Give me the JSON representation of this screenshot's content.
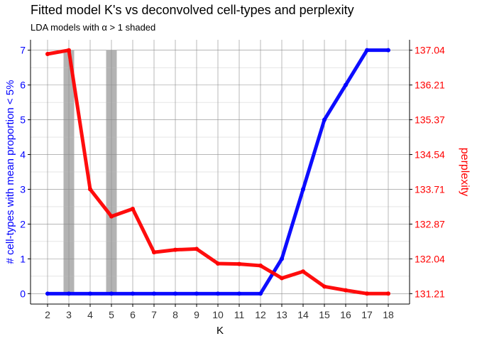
{
  "chart_data": {
    "type": "line",
    "title": "Fitted model K's vs deconvolved cell-types and perplexity",
    "subtitle": "LDA models with α > 1 shaded",
    "xlabel": "K",
    "ylabel_left": "# cell-types with mean proportion < 5%",
    "ylabel_right": "perplexity",
    "x": [
      2,
      3,
      4,
      5,
      6,
      7,
      8,
      9,
      10,
      11,
      12,
      13,
      14,
      15,
      16,
      17,
      18
    ],
    "xlim": [
      1.2,
      19.0
    ],
    "ylim_left": [
      -0.3,
      7.3
    ],
    "yticks_left": [
      0,
      1,
      2,
      3,
      4,
      5,
      6,
      7
    ],
    "ylim_right": [
      130.96,
      137.29
    ],
    "yticks_right": [
      "131.21",
      "132.04",
      "132.87",
      "133.71",
      "134.54",
      "135.37",
      "136.21",
      "137.04"
    ],
    "shaded_k": [
      3,
      5
    ],
    "shaded_color": "#b3b3b3",
    "grid": true,
    "series": [
      {
        "axis": "left",
        "color": "#0000ff",
        "values": [
          0,
          0,
          0,
          0,
          0,
          0,
          0,
          0,
          0,
          0,
          0,
          1,
          3,
          5,
          6,
          7,
          7
        ]
      },
      {
        "axis": "right",
        "color": "#ff0000",
        "values": [
          136.95,
          137.04,
          133.71,
          133.06,
          133.24,
          132.2,
          132.26,
          132.28,
          131.93,
          131.92,
          131.88,
          131.58,
          131.74,
          131.38,
          131.29,
          131.21,
          131.21
        ]
      }
    ]
  }
}
